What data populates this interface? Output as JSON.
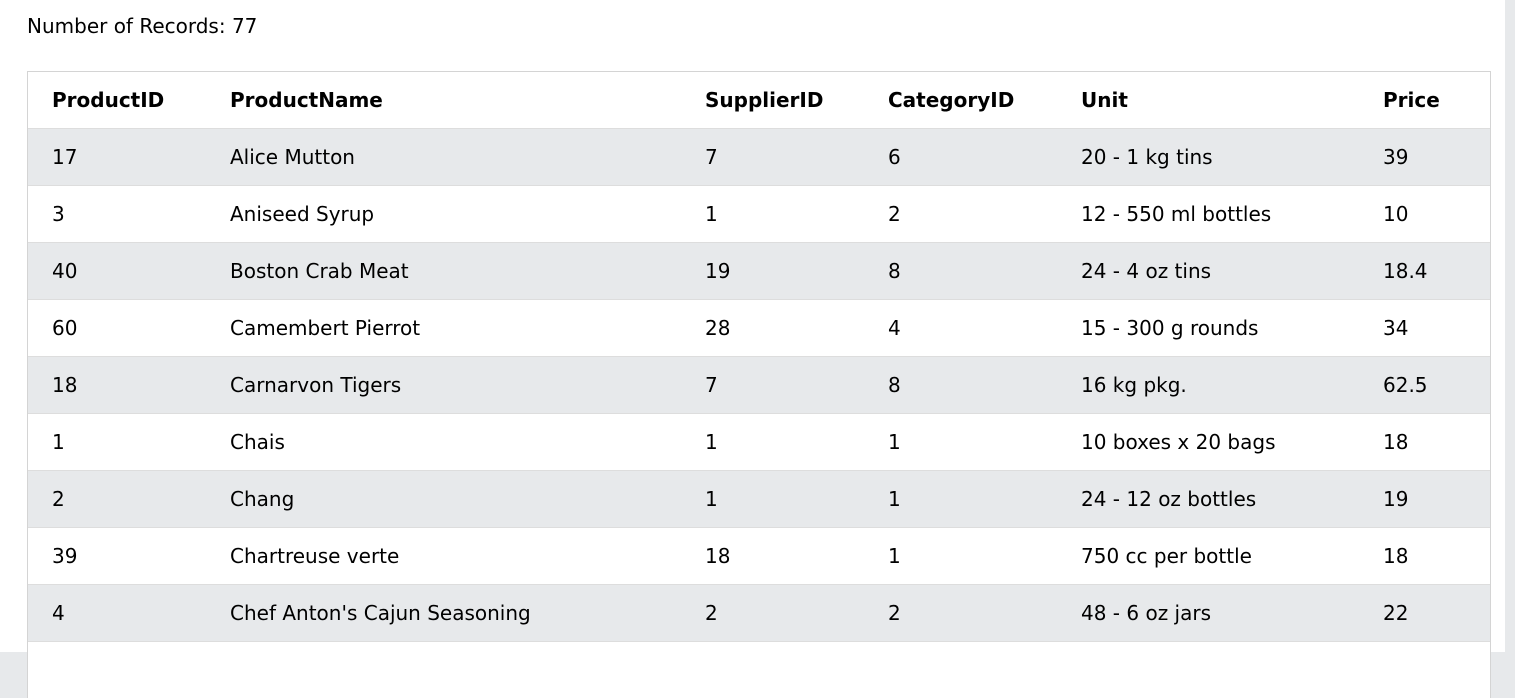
{
  "summary": {
    "records_text": "Number of Records: 77"
  },
  "table": {
    "headers": [
      "ProductID",
      "ProductName",
      "SupplierID",
      "CategoryID",
      "Unit",
      "Price"
    ],
    "rows": [
      [
        "17",
        "Alice Mutton",
        "7",
        "6",
        "20 - 1 kg tins",
        "39"
      ],
      [
        "3",
        "Aniseed Syrup",
        "1",
        "2",
        "12 - 550 ml bottles",
        "10"
      ],
      [
        "40",
        "Boston Crab Meat",
        "19",
        "8",
        "24 - 4 oz tins",
        "18.4"
      ],
      [
        "60",
        "Camembert Pierrot",
        "28",
        "4",
        "15 - 300 g rounds",
        "34"
      ],
      [
        "18",
        "Carnarvon Tigers",
        "7",
        "8",
        "16 kg pkg.",
        "62.5"
      ],
      [
        "1",
        "Chais",
        "1",
        "1",
        "10 boxes x 20 bags",
        "18"
      ],
      [
        "2",
        "Chang",
        "1",
        "1",
        "24 - 12 oz bottles",
        "19"
      ],
      [
        "39",
        "Chartreuse verte",
        "18",
        "1",
        "750 cc per bottle",
        "18"
      ],
      [
        "4",
        "Chef Anton's Cajun Seasoning",
        "2",
        "2",
        "48 - 6 oz jars",
        "22"
      ],
      [
        "",
        "",
        "",
        "",
        "",
        ""
      ]
    ]
  }
}
